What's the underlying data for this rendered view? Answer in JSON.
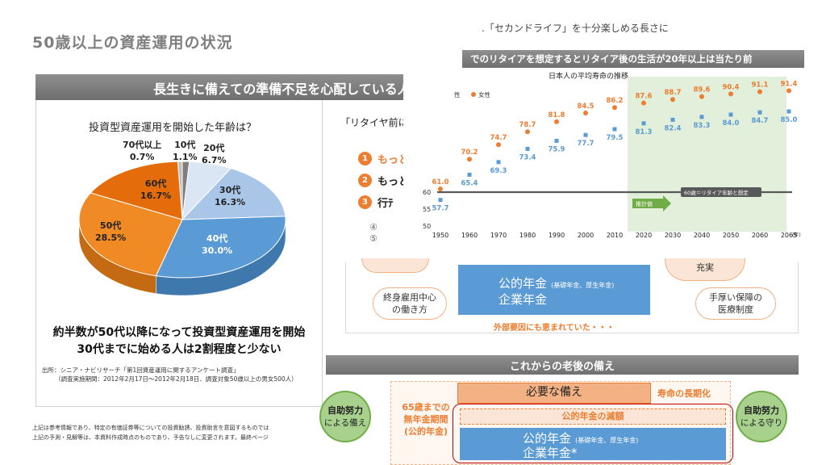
{
  "page_title": "50歳以上の資産運用の状況",
  "left_banner": "長生きに備えての準備不足を心配している人が",
  "pie_title": "投資型資産運用を開始した年齢は？",
  "pie_labels": {
    "s10": {
      "name": "10代",
      "value": "1.1%"
    },
    "s20": {
      "name": "20代",
      "value": "6.7%"
    },
    "s30": {
      "name": "30代",
      "value": "16.3%"
    },
    "s40": {
      "name": "40代",
      "value": "30.0%"
    },
    "s50": {
      "name": "50代",
      "value": "28.5%"
    },
    "s60": {
      "name": "60代",
      "value": "16.7%"
    },
    "s70": {
      "name": "70代以上",
      "value": "0.7%"
    }
  },
  "conclusion": {
    "line1": "約半数が50代以降になって投資型資産運用を開始",
    "line2": "30代までに始める人は2割程度と少ない"
  },
  "source": {
    "line1": "出所：シニア・ナビリサーチ「第1回資産運用に関するアンケート調査」",
    "line2": "（調査実施期間：2012年2月17日～2012年2月18日、調査対象50歳以上の男女500人）"
  },
  "footnote": {
    "line1": "上記は参考情報であり、特定の有価証券等についての投資勧誘、投資助言を意図するものでは",
    "line2": "上記の予測・見解等は、本資料作成時点のものであり、予告なしに変更されます。最終ページ"
  },
  "retire_question": "「リタイヤ前にやるべ",
  "list_items": [
    {
      "num": "1",
      "text": "もっと貯"
    },
    {
      "num": "2",
      "text": "もっと"
    },
    {
      "num": "3",
      "text": "行ﾃ"
    }
  ],
  "list_circled": [
    "④",
    "⑤"
  ],
  "subtitle_top": ".「セカンドライフ」を十分楽しめる長さに",
  "right_banner": "でのリタイアを想定するとリタイア後の生活が20年以上は当たり前",
  "life_chart_title": "日本人の平均寿命の推移",
  "legend": {
    "male_partial": "性",
    "female": "女性"
  },
  "year_unit": "(年)",
  "line60_label": "60歳＝リタイア年齢と想定",
  "estimate_label": "推計値",
  "mid": {
    "pension_main1": "公的年金",
    "pension_sub": "(基礎年金、厚生年金)",
    "pension_main2": "企業年金",
    "oval_left": [
      "終身雇用中心",
      "の働き方"
    ],
    "oval_right": [
      "手厚い保障の",
      "医療制度"
    ],
    "oval_top_right": "充実",
    "external": "外部要因にも恵まれていた・・・"
  },
  "bottom": {
    "banner": "これからの老後の備え",
    "left_circle": [
      "自助努力",
      "による備え"
    ],
    "right_circle": [
      "自助努力",
      "による守り"
    ],
    "needed": "必要な備え",
    "longevity": "寿命の長期化",
    "no_pension": [
      "65歳までの",
      "無年金期間",
      "(公的年金)"
    ],
    "reduce": "公的年金の減額",
    "pension_main1": "公的年金",
    "pension_sub": "(基礎年金、厚生年金)",
    "pension_main2": "企業年金*"
  },
  "colors": {
    "orange": "#ed7d31",
    "blue": "#5b9bd5",
    "green": "#a9d18e",
    "banner_gray": "#7f7f7f",
    "pie_40": "#5b9bd5",
    "pie_50": "#f08a24",
    "pie_60": "#e46c0a",
    "pie_30": "#a9c6e8",
    "pie_20": "#dae6f4"
  },
  "chart_data": [
    {
      "type": "pie",
      "title": "投資型資産運用を開始した年齢は？",
      "categories": [
        "10代",
        "20代",
        "30代",
        "40代",
        "50代",
        "60代",
        "70代以上"
      ],
      "values": [
        1.1,
        6.7,
        16.3,
        30.0,
        28.5,
        16.7,
        0.7
      ],
      "unit": "%"
    },
    {
      "type": "scatter",
      "title": "日本人の平均寿命の推移",
      "x": [
        "1950",
        "1960",
        "1970",
        "1980",
        "1990",
        "2000",
        "2010",
        "2020",
        "2030",
        "2040",
        "2050",
        "2060",
        "2065"
      ],
      "series": [
        {
          "name": "女性",
          "color": "#ed7d31",
          "values": [
            61.0,
            70.2,
            74.7,
            78.7,
            81.8,
            84.5,
            86.2,
            87.6,
            88.7,
            89.6,
            90.4,
            91.1,
            91.4
          ]
        },
        {
          "name": "男性",
          "color": "#5b9bd5",
          "values": [
            57.7,
            65.4,
            69.3,
            73.4,
            75.9,
            77.7,
            79.5,
            81.3,
            82.4,
            83.3,
            84.0,
            84.7,
            85.0
          ]
        }
      ],
      "yticks": [
        50,
        55,
        60
      ],
      "reference_line": 60,
      "estimate_from": "2020",
      "xlabel": "(年)"
    }
  ]
}
